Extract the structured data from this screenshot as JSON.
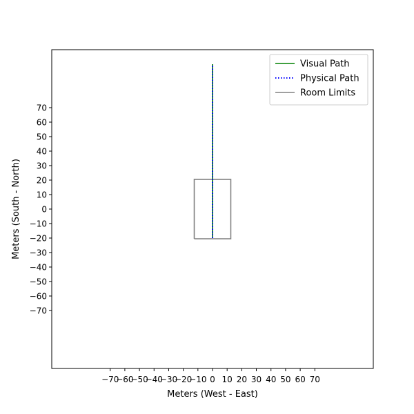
{
  "chart_data": {
    "type": "line",
    "title": "",
    "xlabel": "Meters (West - East)",
    "ylabel": "Meters (South - North)",
    "xlim": [
      -110,
      110
    ],
    "ylim": [
      -110,
      110
    ],
    "xticks": [
      -70,
      -60,
      -50,
      -40,
      -30,
      -20,
      -10,
      0,
      10,
      20,
      30,
      40,
      50,
      60,
      70
    ],
    "yticks": [
      -70,
      -60,
      -50,
      -40,
      -30,
      -20,
      -10,
      0,
      10,
      20,
      30,
      40,
      50,
      60,
      70
    ],
    "xtick_labels": [
      "−70",
      "−60",
      "−50",
      "−40",
      "−30",
      "−20",
      "−10",
      "0",
      "10",
      "20",
      "30",
      "40",
      "50",
      "60",
      "70"
    ],
    "ytick_labels": [
      "−70",
      "−60",
      "−50",
      "−40",
      "−30",
      "−20",
      "−10",
      "0",
      "10",
      "20",
      "30",
      "40",
      "50",
      "60",
      "70"
    ],
    "grid": false,
    "legend": {
      "placement": "upper right"
    },
    "series": [
      {
        "name": "Visual Path",
        "color": "#008000",
        "linestyle": "solid",
        "x": [
          0,
          0
        ],
        "y": [
          -20,
          100
        ]
      },
      {
        "name": "Physical Path",
        "color": "#0000ff",
        "linestyle": "dotted",
        "x": [
          0,
          0
        ],
        "y": [
          -20,
          100
        ]
      },
      {
        "name": "Room Limits",
        "color": "#808080",
        "linestyle": "solid",
        "x": [
          -12.5,
          12.5,
          12.5,
          -12.5,
          -12.5
        ],
        "y": [
          -20.5,
          -20.5,
          20.5,
          20.5,
          -20.5
        ]
      }
    ]
  }
}
